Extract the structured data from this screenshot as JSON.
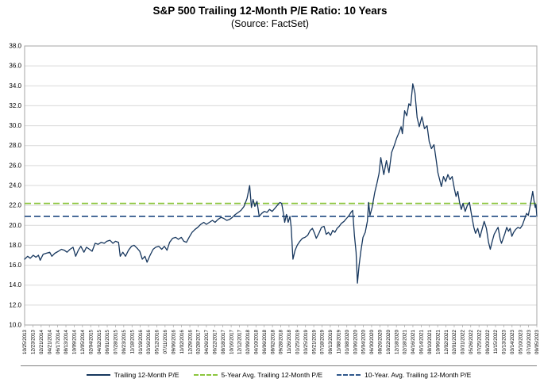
{
  "title": "S&P 500 Trailing 12-Month P/E Ratio: 10 Years",
  "subtitle": "(Source: FactSet)",
  "legend": [
    {
      "label": "Trailing 12-Month P/E",
      "color": "#17375e",
      "style": "solid"
    },
    {
      "label": "5-Year Avg. Trailing 12-Month P/E",
      "color": "#8cc63e",
      "style": "dashed"
    },
    {
      "label": "10-Year. Avg. Trailing 12-Month P/E",
      "color": "#30588c",
      "style": "dashed"
    }
  ],
  "chart_data": {
    "type": "line",
    "title": "S&P 500 Trailing 12-Month P/E Ratio: 10 Years",
    "subtitle": "(Source: FactSet)",
    "xlabel": "",
    "ylabel": "",
    "ylim": [
      10.0,
      38.0
    ],
    "yticks": [
      38.0,
      36.0,
      34.0,
      32.0,
      30.0,
      28.0,
      26.0,
      24.0,
      22.0,
      20.0,
      18.0,
      16.0,
      14.0,
      12.0,
      10.0
    ],
    "grid": true,
    "legend_position": "bottom",
    "colors": {
      "grid": "#d9d9d9",
      "border": "#a6a6a6",
      "tick_text": "#000000"
    },
    "x_tick_labels": [
      "10/25/2013",
      "12/23/2013",
      "02/21/2014",
      "04/21/2014",
      "06/17/2014",
      "08/13/2014",
      "10/09/2014",
      "12/05/2014",
      "02/04/2015",
      "04/02/2015",
      "06/01/2015",
      "07/28/2015",
      "09/23/2015",
      "11/18/2015",
      "01/19/2016",
      "03/16/2016",
      "05/12/2016",
      "07/11/2016",
      "09/06/2016",
      "11/02/2016",
      "12/29/2016",
      "02/28/2017",
      "04/26/2017",
      "06/22/2017",
      "08/18/2017",
      "10/16/2017",
      "12/12/2017",
      "02/09/2018",
      "04/10/2018",
      "06/06/2018",
      "08/02/2018",
      "09/28/2018",
      "11/26/2018",
      "01/25/2019",
      "03/25/2019",
      "05/21/2019",
      "07/18/2019",
      "09/13/2019",
      "11/08/2019",
      "01/08/2020",
      "03/06/2020",
      "05/04/2020",
      "06/30/2020",
      "08/26/2020",
      "10/22/2020",
      "12/18/2020",
      "02/18/2021",
      "04/16/2021",
      "06/14/2021",
      "08/10/2021",
      "10/06/2021",
      "12/02/2021",
      "02/01/2022",
      "03/31/2022",
      "05/26/2022",
      "07/25/2022",
      "09/20/2022",
      "11/15/2022",
      "01/13/2023",
      "03/14/2023",
      "05/10/2023",
      "07/10/2023",
      "09/05/2023"
    ],
    "x_span": 118.36,
    "series": [
      {
        "name": "Trailing 12-Month P/E",
        "type": "line",
        "color": "#17375e",
        "points": [
          [
            0,
            16.6
          ],
          [
            0.7,
            16.9
          ],
          [
            1.3,
            16.7
          ],
          [
            2,
            17
          ],
          [
            2.6,
            16.8
          ],
          [
            3.2,
            17
          ],
          [
            3.6,
            16.5
          ],
          [
            4.3,
            17.1
          ],
          [
            5,
            17.2
          ],
          [
            5.8,
            17.3
          ],
          [
            6.3,
            16.9
          ],
          [
            7,
            17.2
          ],
          [
            7.8,
            17.4
          ],
          [
            8.5,
            17.6
          ],
          [
            9.2,
            17.5
          ],
          [
            9.8,
            17.3
          ],
          [
            10.5,
            17.6
          ],
          [
            11.2,
            17.8
          ],
          [
            11.8,
            16.9
          ],
          [
            12.4,
            17.5
          ],
          [
            13,
            17.9
          ],
          [
            13.7,
            17.3
          ],
          [
            14.3,
            17.8
          ],
          [
            15,
            17.6
          ],
          [
            15.6,
            17.4
          ],
          [
            16.3,
            18.2
          ],
          [
            17,
            18.1
          ],
          [
            17.7,
            18.3
          ],
          [
            18.4,
            18.2
          ],
          [
            19,
            18.4
          ],
          [
            19.7,
            18.5
          ],
          [
            20.4,
            18.2
          ],
          [
            21,
            18.4
          ],
          [
            21.7,
            18.3
          ],
          [
            22.1,
            16.9
          ],
          [
            22.7,
            17.3
          ],
          [
            23.3,
            16.9
          ],
          [
            24,
            17.5
          ],
          [
            24.7,
            17.9
          ],
          [
            25.3,
            18
          ],
          [
            26,
            17.7
          ],
          [
            26.6,
            17.4
          ],
          [
            27.2,
            16.6
          ],
          [
            27.8,
            16.9
          ],
          [
            28.3,
            16.3
          ],
          [
            29,
            17
          ],
          [
            29.7,
            17.6
          ],
          [
            30.3,
            17.8
          ],
          [
            31,
            17.9
          ],
          [
            31.7,
            17.6
          ],
          [
            32.3,
            17.9
          ],
          [
            32.9,
            17.5
          ],
          [
            33.5,
            18.3
          ],
          [
            34.2,
            18.7
          ],
          [
            34.9,
            18.8
          ],
          [
            35.5,
            18.6
          ],
          [
            36.2,
            18.8
          ],
          [
            36.8,
            18.4
          ],
          [
            37.4,
            18.3
          ],
          [
            38,
            18.8
          ],
          [
            38.7,
            19.3
          ],
          [
            39.4,
            19.6
          ],
          [
            40,
            19.8
          ],
          [
            40.7,
            20.1
          ],
          [
            41.4,
            20.3
          ],
          [
            42,
            20.1
          ],
          [
            42.7,
            20.3
          ],
          [
            43.4,
            20.5
          ],
          [
            44,
            20.3
          ],
          [
            44.7,
            20.6
          ],
          [
            45.4,
            20.8
          ],
          [
            46,
            20.7
          ],
          [
            46.7,
            20.5
          ],
          [
            47.4,
            20.6
          ],
          [
            48,
            20.8
          ],
          [
            48.7,
            21.1
          ],
          [
            49.4,
            21.3
          ],
          [
            50,
            21.5
          ],
          [
            50.7,
            21.9
          ],
          [
            51.4,
            22.7
          ],
          [
            52,
            24
          ],
          [
            52.4,
            21.8
          ],
          [
            52.8,
            22.6
          ],
          [
            53.2,
            21.9
          ],
          [
            53.7,
            22.4
          ],
          [
            54.2,
            20.9
          ],
          [
            54.8,
            21.2
          ],
          [
            55.4,
            21.4
          ],
          [
            56,
            21.3
          ],
          [
            56.6,
            21.6
          ],
          [
            57.2,
            21.4
          ],
          [
            57.8,
            21.7
          ],
          [
            58.4,
            22
          ],
          [
            59,
            22.3
          ],
          [
            59.4,
            22.2
          ],
          [
            59.8,
            21.2
          ],
          [
            60.1,
            20.3
          ],
          [
            60.5,
            21.1
          ],
          [
            60.9,
            20.3
          ],
          [
            61.3,
            20.9
          ],
          [
            61.6,
            19.8
          ],
          [
            62,
            16.6
          ],
          [
            62.5,
            17.5
          ],
          [
            63,
            18
          ],
          [
            63.6,
            18.4
          ],
          [
            64.2,
            18.7
          ],
          [
            64.8,
            18.8
          ],
          [
            65.4,
            19
          ],
          [
            66,
            19.5
          ],
          [
            66.5,
            19.7
          ],
          [
            67,
            19.2
          ],
          [
            67.4,
            18.7
          ],
          [
            68,
            19.2
          ],
          [
            68.6,
            19.8
          ],
          [
            69.2,
            19.9
          ],
          [
            69.7,
            19.1
          ],
          [
            70.2,
            19.3
          ],
          [
            70.7,
            19
          ],
          [
            71.2,
            19.5
          ],
          [
            71.7,
            19.3
          ],
          [
            72.2,
            19.7
          ],
          [
            72.7,
            19.9
          ],
          [
            73.2,
            20.2
          ],
          [
            73.8,
            20.4
          ],
          [
            74.4,
            20.7
          ],
          [
            75,
            21
          ],
          [
            75.4,
            21.3
          ],
          [
            75.8,
            21.5
          ],
          [
            76.2,
            19
          ],
          [
            76.6,
            17.3
          ],
          [
            76.9,
            14.2
          ],
          [
            77.3,
            16
          ],
          [
            77.7,
            17.4
          ],
          [
            78.2,
            18.8
          ],
          [
            78.7,
            19.3
          ],
          [
            79.2,
            20.4
          ],
          [
            79.5,
            22.3
          ],
          [
            79.8,
            21
          ],
          [
            80.3,
            21.8
          ],
          [
            80.9,
            23.3
          ],
          [
            81.4,
            24.2
          ],
          [
            81.9,
            25.2
          ],
          [
            82.3,
            26.8
          ],
          [
            83,
            25.1
          ],
          [
            83.6,
            26.5
          ],
          [
            84.2,
            25.3
          ],
          [
            84.8,
            27.3
          ],
          [
            85.4,
            28
          ],
          [
            86,
            28.8
          ],
          [
            86.5,
            29.3
          ],
          [
            87,
            29.9
          ],
          [
            87.3,
            29.2
          ],
          [
            87.8,
            31.5
          ],
          [
            88.3,
            31
          ],
          [
            88.8,
            32.2
          ],
          [
            89.2,
            32
          ],
          [
            89.7,
            34.2
          ],
          [
            90.2,
            33.3
          ],
          [
            90.7,
            30.8
          ],
          [
            91.2,
            29.9
          ],
          [
            91.8,
            30.9
          ],
          [
            92.4,
            29.7
          ],
          [
            93,
            30
          ],
          [
            93.5,
            28.4
          ],
          [
            94,
            27.7
          ],
          [
            94.6,
            28.1
          ],
          [
            95.1,
            26.6
          ],
          [
            95.5,
            25.3
          ],
          [
            95.9,
            24.6
          ],
          [
            96.3,
            23.9
          ],
          [
            96.8,
            24.9
          ],
          [
            97.3,
            24.4
          ],
          [
            97.8,
            25.1
          ],
          [
            98.3,
            24.6
          ],
          [
            98.8,
            24.9
          ],
          [
            99.3,
            23.7
          ],
          [
            99.7,
            22.9
          ],
          [
            100.1,
            23.4
          ],
          [
            100.5,
            22.3
          ],
          [
            100.9,
            21.6
          ],
          [
            101.3,
            22.2
          ],
          [
            101.8,
            21.4
          ],
          [
            102.3,
            22
          ],
          [
            102.8,
            22.3
          ],
          [
            103.3,
            21
          ],
          [
            103.8,
            19.8
          ],
          [
            104.2,
            19.2
          ],
          [
            104.7,
            19.7
          ],
          [
            105.2,
            18.8
          ],
          [
            105.7,
            19.6
          ],
          [
            106.2,
            20.4
          ],
          [
            106.7,
            19.7
          ],
          [
            107.2,
            18.3
          ],
          [
            107.6,
            17.6
          ],
          [
            108,
            18.3
          ],
          [
            108.5,
            19.1
          ],
          [
            109,
            19.5
          ],
          [
            109.4,
            19.8
          ],
          [
            109.9,
            18.6
          ],
          [
            110.2,
            18.2
          ],
          [
            110.6,
            18.7
          ],
          [
            111,
            19.2
          ],
          [
            111.4,
            19.8
          ],
          [
            111.8,
            19.4
          ],
          [
            112.2,
            19.7
          ],
          [
            112.6,
            18.9
          ],
          [
            113,
            19.3
          ],
          [
            113.5,
            19.6
          ],
          [
            114,
            19.8
          ],
          [
            114.5,
            19.7
          ],
          [
            115,
            20
          ],
          [
            115.5,
            20.6
          ],
          [
            116,
            21.2
          ],
          [
            116.4,
            21
          ],
          [
            116.8,
            21.9
          ],
          [
            117.1,
            22.6
          ],
          [
            117.4,
            23.4
          ],
          [
            117.7,
            22.5
          ],
          [
            118,
            21.8
          ],
          [
            118.15,
            22.1
          ],
          [
            118.36,
            20.9
          ]
        ]
      },
      {
        "name": "5-Year Avg. Trailing 12-Month P/E",
        "type": "hline",
        "color": "#8cc63e",
        "value": 22.2
      },
      {
        "name": "10-Year. Avg. Trailing 12-Month P/E",
        "type": "hline",
        "color": "#30588c",
        "value": 20.9
      }
    ]
  }
}
